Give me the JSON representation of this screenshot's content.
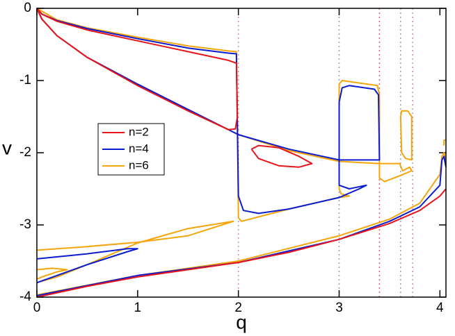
{
  "chart_data": {
    "type": "line",
    "x_label": "q",
    "y_label": "v",
    "xlim": [
      0,
      4.06
    ],
    "ylim": [
      -4,
      0
    ],
    "xticks": [
      0,
      1,
      2,
      3,
      4
    ],
    "yticks": [
      0,
      -1,
      -2,
      -3,
      -4
    ],
    "legend": "upper-left",
    "reference_lines": [
      {
        "x": 2,
        "color": "#d98a9a"
      },
      {
        "x": 3,
        "color": "#a09aa8"
      },
      {
        "x": 3.4,
        "color": "#d9606a"
      },
      {
        "x": 3.61,
        "color": "#a09aa8"
      },
      {
        "x": 3.73,
        "color": "#c890a8"
      }
    ],
    "series": [
      {
        "name": "n=2",
        "color": "#e8141a",
        "x": [
          0,
          0.05,
          0.2,
          0.5,
          1,
          1.5,
          1.9,
          1.98,
          1.99,
          1.97,
          1.9,
          1.5,
          1,
          0.5,
          0.2,
          0.05,
          0,
          null,
          2.13,
          2.2,
          2.4,
          2.6,
          2.73,
          2.6,
          2.4,
          2.2,
          2.13,
          null,
          0,
          0.5,
          1,
          1.5,
          2,
          2.5,
          3,
          3.5,
          3.8,
          4,
          4.06
        ],
        "values": [
          0,
          -0.08,
          -0.18,
          -0.3,
          -0.45,
          -0.6,
          -0.72,
          -0.76,
          -1.5,
          -1.67,
          -1.68,
          -1.42,
          -1.07,
          -0.68,
          -0.38,
          -0.15,
          0,
          null,
          -1.95,
          -1.9,
          -1.93,
          -2.05,
          -2.15,
          -2.2,
          -2.18,
          -2.08,
          -1.95,
          null,
          -4,
          -3.85,
          -3.72,
          -3.62,
          -3.52,
          -3.38,
          -3.2,
          -2.98,
          -2.8,
          -2.6,
          -2.5
        ]
      },
      {
        "name": "n=4",
        "color": "#0a1ccf",
        "x": [
          0,
          0.05,
          0.2,
          0.5,
          1,
          1.5,
          1.9,
          1.98,
          2,
          2.05,
          2.2,
          2.5,
          3,
          3.2,
          3.27,
          3.1,
          3,
          3,
          3.03,
          3.1,
          3.35,
          3.39,
          3.4,
          3,
          2.5,
          2,
          1.5,
          1,
          0.5,
          0.2,
          0.05,
          0,
          null,
          0,
          0.5,
          0.9,
          1,
          0.9,
          0.5,
          0.2,
          0,
          null,
          0,
          1,
          2,
          3,
          3.5,
          3.8,
          4,
          4.02,
          4.04,
          4.06
        ],
        "values": [
          0,
          -0.08,
          -0.17,
          -0.28,
          -0.42,
          -0.55,
          -0.62,
          -0.63,
          -2.6,
          -2.8,
          -2.84,
          -2.78,
          -2.62,
          -2.5,
          -2.45,
          -2.5,
          -2.45,
          -1.3,
          -1.1,
          -1.07,
          -1.12,
          -1.2,
          -2.1,
          -2.1,
          -1.95,
          -1.75,
          -1.4,
          -1.05,
          -0.68,
          -0.38,
          -0.15,
          0,
          null,
          -3.47,
          -3.4,
          -3.33,
          -3.33,
          -3.37,
          -3.55,
          -3.7,
          -3.8,
          null,
          -3.98,
          -3.7,
          -3.52,
          -3.2,
          -2.95,
          -2.75,
          -2.45,
          -2.1,
          -2.05,
          -2.2
        ]
      },
      {
        "name": "n=6",
        "color": "#f5a50a",
        "x": [
          0,
          0.2,
          0.5,
          1,
          1.5,
          1.9,
          1.98,
          2,
          2.03,
          2.5,
          3,
          3.1,
          3.02,
          3,
          3,
          3.03,
          3.38,
          3.4,
          3.4,
          3.45,
          3.6,
          3.72,
          3.7,
          3.63,
          3.6,
          3.5,
          3.4,
          3,
          2.5,
          2,
          1.5,
          1,
          0.5,
          0.2,
          0.05,
          0,
          null,
          3.61,
          3.62,
          3.68,
          3.72,
          3.72,
          3.66,
          3.62,
          3.61,
          null,
          0,
          0.5,
          1,
          1.5,
          1.95,
          1.5,
          1,
          0.5,
          0.2,
          0,
          null,
          0,
          0.15,
          0.3,
          0.2,
          0.05,
          0,
          null,
          0,
          1,
          2,
          3,
          3.5,
          3.8,
          4,
          4.02,
          4.04,
          4.06,
          null,
          4.04,
          4.04,
          4.06
        ],
        "values": [
          0,
          -0.16,
          -0.27,
          -0.4,
          -0.52,
          -0.59,
          -0.6,
          -2.9,
          -2.95,
          -2.78,
          -2.62,
          -2.6,
          -2.57,
          -2.5,
          -1.05,
          -1,
          -1.07,
          -1.2,
          -2.35,
          -2.4,
          -2.32,
          -2.25,
          -2.2,
          -2.25,
          -2.15,
          -2.15,
          -2.15,
          -2.12,
          -1.97,
          -1.75,
          -1.4,
          -1.05,
          -0.68,
          -0.38,
          -0.15,
          0,
          null,
          -1.5,
          -1.42,
          -1.42,
          -1.5,
          -2.1,
          -2.08,
          -2,
          -1.5,
          null,
          -3.35,
          -3.3,
          -3.24,
          -3.15,
          -2.95,
          -3.05,
          -3.25,
          -3.55,
          -3.72,
          -3.8,
          null,
          -3.62,
          -3.6,
          -3.62,
          -3.65,
          -3.72,
          -3.75,
          null,
          -3.97,
          -3.7,
          -3.5,
          -3.15,
          -2.92,
          -2.7,
          -2.3,
          -2.05,
          -2,
          -2.1,
          null,
          -1.9,
          -1.83,
          -1.82
        ]
      }
    ]
  }
}
